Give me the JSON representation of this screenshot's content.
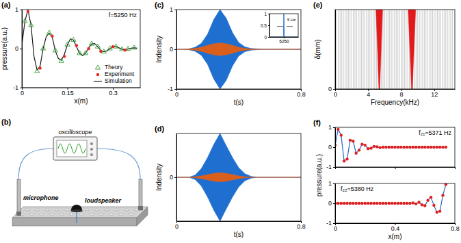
{
  "chart_data": [
    {
      "type": "line",
      "panel_label": "(a)",
      "title": "f=5250 Hz",
      "x_label": "x(m)",
      "y_label": "pressure(a.u.)",
      "xlim": [
        0,
        0.39
      ],
      "ylim": [
        -1,
        1
      ],
      "xticks": [
        0,
        0.15,
        0.3
      ],
      "yticks": [
        -1,
        0,
        1
      ],
      "legend": "lower right",
      "series": [
        {
          "name": "Theory",
          "type": "scatter",
          "marker": "triangle",
          "color": "#2ca02c",
          "x": [
            0.01,
            0.03,
            0.05,
            0.07,
            0.09,
            0.11,
            0.13,
            0.15,
            0.17,
            0.19,
            0.21,
            0.23,
            0.25,
            0.27,
            0.29,
            0.31,
            0.33,
            0.35,
            0.37
          ],
          "values": [
            0.7,
            0.6,
            -0.58,
            0,
            0.4,
            -0.05,
            -0.32,
            0.1,
            0.22,
            -0.12,
            -0.12,
            0.12,
            0.05,
            -0.08,
            0,
            0.05,
            -0.02,
            -0.01,
            0.02
          ]
        },
        {
          "name": "Experiment",
          "type": "scatter",
          "marker": "circle",
          "color": "#e8281e",
          "x": [
            0.02,
            0.06,
            0.1,
            0.14,
            0.18,
            0.22,
            0.26,
            0.3,
            0.34
          ],
          "values": [
            0.95,
            -0.5,
            0.32,
            -0.2,
            0.08,
            0,
            -0.07,
            0.05,
            -0.04
          ]
        },
        {
          "name": "Simulation",
          "type": "line",
          "color": "#1a1a1a",
          "x": [
            0,
            0.01,
            0.02,
            0.03,
            0.04,
            0.05,
            0.06,
            0.07,
            0.08,
            0.09,
            0.1,
            0.11,
            0.12,
            0.13,
            0.14,
            0.15,
            0.16,
            0.17,
            0.18,
            0.19,
            0.2,
            0.21,
            0.22,
            0.23,
            0.24,
            0.25,
            0.26,
            0.27,
            0.28,
            0.29,
            0.3,
            0.31,
            0.32,
            0.33,
            0.34,
            0.35,
            0.36,
            0.37,
            0.38
          ],
          "values": [
            0.1,
            0.7,
            1,
            0.6,
            -0.2,
            -0.55,
            -0.45,
            0,
            0.3,
            0.4,
            0.3,
            -0.05,
            -0.25,
            -0.3,
            -0.15,
            0.1,
            0.25,
            0.22,
            0.05,
            -0.12,
            -0.18,
            -0.12,
            0.02,
            0.12,
            0.13,
            0.05,
            -0.05,
            -0.08,
            -0.06,
            0,
            0.04,
            0.05,
            0.02,
            -0.02,
            -0.03,
            -0.01,
            0.01,
            0.02,
            0.01
          ]
        }
      ]
    },
    {
      "type": "area",
      "panel_label": "(c)",
      "x_label": "t(s)",
      "y_label": "Indensity",
      "xlim": [
        0,
        0.8
      ],
      "ylim": [
        -1,
        1
      ],
      "xticks": [
        0,
        0.8
      ],
      "yticks": [
        -1,
        0,
        1
      ],
      "x": [
        0,
        0.04,
        0.08,
        0.12,
        0.16,
        0.2,
        0.24,
        0.28,
        0.32,
        0.36,
        0.4,
        0.44,
        0.48,
        0.52,
        0.56,
        0.6,
        0.64,
        0.68,
        0.72,
        0.76,
        0.8
      ],
      "series": [
        {
          "color": "#1f6fd0",
          "values": [
            0,
            0,
            0.01,
            0.05,
            0.15,
            0.38,
            0.75,
            1,
            0.78,
            0.42,
            0.17,
            0.06,
            0.02,
            0.01,
            0,
            0,
            0,
            0,
            0,
            0,
            0
          ],
          "lower": [
            0,
            0,
            -0.01,
            -0.05,
            -0.15,
            -0.38,
            -0.75,
            -1,
            -0.78,
            -0.42,
            -0.17,
            -0.06,
            -0.02,
            -0.01,
            0,
            0,
            0,
            0,
            0,
            0,
            0
          ]
        },
        {
          "color": "#d9601c",
          "values": [
            0,
            0,
            0.01,
            0.02,
            0.05,
            0.1,
            0.14,
            0.16,
            0.14,
            0.1,
            0.05,
            0.02,
            0.01,
            0,
            0,
            0,
            0,
            0,
            0,
            0,
            0
          ],
          "lower": [
            0,
            0,
            -0.01,
            -0.02,
            -0.05,
            -0.1,
            -0.14,
            -0.16,
            -0.14,
            -0.1,
            -0.05,
            -0.02,
            -0.01,
            0,
            0,
            0,
            0,
            0,
            0,
            0,
            0
          ]
        }
      ]
    },
    {
      "type": "line",
      "xlim": [
        5150,
        5350
      ],
      "ylim": [
        0,
        1
      ],
      "xticks": [
        5250
      ],
      "yticks": [
        0,
        0.5,
        1
      ],
      "annotations": [
        "5 Hz"
      ],
      "series": [
        {
          "color": "#1f6fd0",
          "x": [
            5150,
            5240,
            5247,
            5250,
            5253,
            5260,
            5350
          ],
          "values": [
            0,
            0,
            0.02,
            1,
            0.02,
            0,
            0
          ]
        }
      ]
    },
    {
      "type": "area",
      "panel_label": "(d)",
      "x_label": "t(s)",
      "y_label": "Indensity",
      "xlim": [
        0,
        0.8
      ],
      "ylim": [
        -1,
        1
      ],
      "xticks": [
        0,
        0.8
      ],
      "yticks": [
        0
      ],
      "x": [
        0,
        0.04,
        0.08,
        0.12,
        0.16,
        0.2,
        0.24,
        0.28,
        0.32,
        0.36,
        0.4,
        0.44,
        0.48,
        0.52,
        0.56,
        0.6,
        0.64,
        0.68,
        0.72,
        0.76,
        0.8
      ],
      "series": [
        {
          "color": "#1f6fd0",
          "values": [
            0,
            0,
            0,
            0.05,
            0.2,
            0.45,
            0.75,
            1,
            0.72,
            0.45,
            0.22,
            0.08,
            0.02,
            0,
            0,
            0,
            0,
            0,
            0,
            0,
            0
          ],
          "lower": [
            0,
            0,
            0,
            -0.05,
            -0.2,
            -0.45,
            -0.75,
            -1,
            -0.72,
            -0.45,
            -0.22,
            -0.08,
            -0.02,
            0,
            0,
            0,
            0,
            0,
            0,
            0,
            0
          ]
        },
        {
          "color": "#d9601c",
          "values": [
            0,
            0,
            0,
            0.01,
            0.03,
            0.06,
            0.09,
            0.1,
            0.09,
            0.06,
            0.03,
            0.01,
            0,
            0,
            0,
            0,
            0,
            0,
            0,
            0,
            0
          ],
          "lower": [
            0,
            0,
            0,
            -0.01,
            -0.03,
            -0.06,
            -0.09,
            -0.1,
            -0.09,
            -0.06,
            -0.03,
            -0.01,
            0,
            0,
            0,
            0,
            0,
            0,
            0,
            0,
            0
          ]
        }
      ]
    },
    {
      "type": "area",
      "panel_label": "(e)",
      "x_label": "Frequency(kHz)",
      "y_label": "δ(mm)",
      "xlim": [
        0,
        14.5
      ],
      "ylim": [
        0,
        1
      ],
      "xticks": [
        0,
        4,
        8,
        12
      ],
      "yticks": [
        0
      ],
      "series": [
        {
          "type": "vlines",
          "color": "#c4c4c4",
          "x": [
            0.2,
            0.4,
            0.6,
            0.8,
            1,
            1.2,
            1.4,
            1.6,
            1.8,
            2,
            2.2,
            2.4,
            2.6,
            2.8,
            3,
            3.2,
            3.4,
            3.6,
            3.8,
            4,
            4.2,
            4.4,
            4.6,
            4.8,
            5,
            5.2,
            5.4,
            5.6,
            5.8,
            6,
            6.2,
            6.4,
            6.6,
            6.8,
            7,
            7.2,
            7.4,
            7.6,
            7.8,
            8,
            8.2,
            8.4,
            8.6,
            8.8,
            9,
            9.2,
            9.4,
            9.6,
            9.8,
            10,
            10.2,
            10.4,
            10.6,
            10.8,
            11,
            11.2,
            11.4,
            11.6,
            11.8,
            12,
            12.2,
            12.4,
            12.6,
            12.8,
            13,
            13.2,
            13.4,
            13.6,
            13.8,
            14,
            14.2
          ]
        },
        {
          "type": "band",
          "color": "#e31a1c",
          "y": [
            0,
            1
          ],
          "left": [
            5.3,
            4.95
          ],
          "right": [
            5.4,
            5.75
          ]
        },
        {
          "type": "band",
          "color": "#e31a1c",
          "y": [
            0,
            1
          ],
          "left": [
            9.25,
            8.85
          ],
          "right": [
            9.35,
            9.75
          ]
        }
      ]
    },
    {
      "type": "line",
      "panel_label": "(f)",
      "title": "f₂₁=5371 Hz",
      "y_label": "pressure(a.u.)",
      "xlim": [
        0,
        0.8
      ],
      "ylim": [
        -1,
        1
      ],
      "xticks": [
        0,
        0.4,
        0.8
      ],
      "yticks": [
        -1,
        0,
        1
      ],
      "tick_labels": "y",
      "x": [
        0,
        0.02,
        0.04,
        0.06,
        0.08,
        0.1,
        0.12,
        0.14,
        0.16,
        0.18,
        0.2,
        0.22,
        0.24,
        0.26,
        0.28,
        0.3,
        0.32,
        0.34,
        0.36,
        0.38,
        0.4,
        0.42,
        0.44,
        0.46,
        0.48,
        0.5,
        0.52,
        0.54,
        0.56,
        0.58,
        0.6,
        0.62,
        0.64,
        0.66,
        0.68,
        0.7,
        0.72,
        0.74
      ],
      "series": [
        {
          "type": "line",
          "color": "#2b63c6",
          "values": [
            0.1,
            0.9,
            0.6,
            -0.7,
            -0.6,
            0.35,
            0.3,
            -0.3,
            -0.15,
            0.15,
            0.1,
            -0.08,
            -0.05,
            0.04,
            0.02,
            -0.02,
            0,
            0,
            0,
            0,
            0,
            0,
            0,
            0,
            0,
            0,
            0,
            0,
            0,
            0,
            0,
            0,
            0,
            0,
            0,
            0,
            0,
            0
          ]
        },
        {
          "type": "scatter",
          "marker": "circle",
          "color": "#e02020",
          "values": [
            0.1,
            0.9,
            0.6,
            -0.7,
            -0.6,
            0.35,
            0.3,
            -0.3,
            -0.15,
            0.15,
            0.1,
            -0.08,
            -0.05,
            0.04,
            0.02,
            -0.02,
            0,
            0,
            0,
            0,
            0,
            0,
            0,
            0,
            0,
            0,
            0,
            0,
            0,
            0,
            0,
            0,
            0,
            0,
            0,
            0,
            0,
            0
          ]
        }
      ]
    },
    {
      "type": "line",
      "title": "f₂₂=5380 Hz",
      "x_label": "x(m)",
      "xlim": [
        0,
        0.8
      ],
      "ylim": [
        -1,
        1
      ],
      "xticks": [
        0,
        0.4,
        0.8
      ],
      "yticks": [
        -1,
        0,
        1
      ],
      "x": [
        0,
        0.02,
        0.04,
        0.06,
        0.08,
        0.1,
        0.12,
        0.14,
        0.16,
        0.18,
        0.2,
        0.22,
        0.24,
        0.26,
        0.28,
        0.3,
        0.32,
        0.34,
        0.36,
        0.38,
        0.4,
        0.42,
        0.44,
        0.46,
        0.48,
        0.5,
        0.52,
        0.54,
        0.56,
        0.58,
        0.6,
        0.62,
        0.64,
        0.66,
        0.68,
        0.7,
        0.72,
        0.74
      ],
      "series": [
        {
          "type": "line",
          "color": "#2b63c6",
          "values": [
            0,
            0,
            0,
            0,
            0,
            0,
            0,
            0,
            0,
            0,
            0,
            0,
            0,
            0,
            0,
            0,
            0,
            0,
            0,
            0,
            0,
            0,
            0,
            0,
            0,
            0,
            0.02,
            -0.03,
            0.05,
            -0.08,
            -0.12,
            0.15,
            0.3,
            -0.1,
            -0.45,
            -0.4,
            0.4,
            0.95
          ]
        },
        {
          "type": "scatter",
          "marker": "circle",
          "color": "#e02020",
          "values": [
            0,
            0,
            0,
            0,
            0,
            0,
            0,
            0,
            0,
            0,
            0,
            0,
            0,
            0,
            0,
            0,
            0,
            0,
            0,
            0,
            0,
            0,
            0,
            0,
            0,
            0,
            0.02,
            -0.03,
            0.05,
            -0.08,
            -0.12,
            0.15,
            0.3,
            -0.1,
            -0.45,
            -0.4,
            0.4,
            0.95
          ]
        }
      ]
    }
  ],
  "diagram": {
    "panel_label": "(b)",
    "nodes": [
      {
        "label": "oscilloscope"
      },
      {
        "label": "microphone"
      },
      {
        "label": "loudspeaker"
      }
    ]
  }
}
